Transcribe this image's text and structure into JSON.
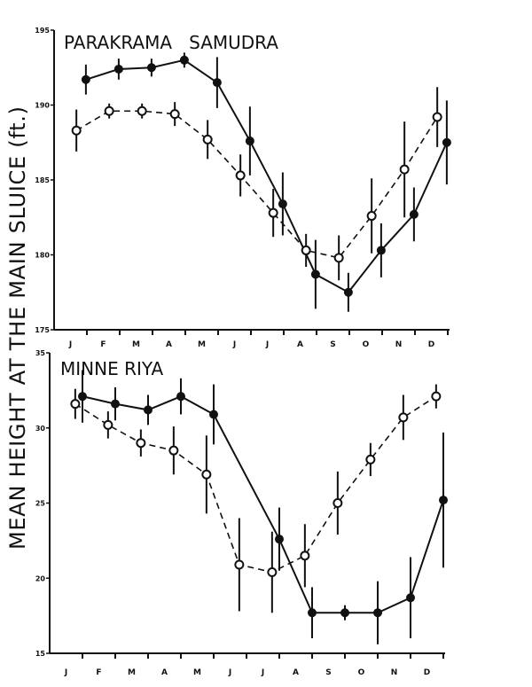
{
  "chart_data": [
    {
      "type": "line",
      "title": "PARAKRAMA   SAMUDRA",
      "ylabel": "MEAN HEIGHT AT THE MAIN SLUICE (ft.)",
      "categories": [
        "J",
        "F",
        "M",
        "A",
        "M",
        "J",
        "J",
        "A",
        "S",
        "O",
        "N",
        "D"
      ],
      "ylim": [
        175,
        195
      ],
      "yticks": [
        175,
        180,
        185,
        190,
        195
      ],
      "grid": false,
      "series": [
        {
          "marker": "filled-circle",
          "line": "solid",
          "values": [
            191.7,
            192.4,
            192.5,
            193.0,
            191.5,
            187.6,
            183.4,
            178.7,
            177.5,
            180.3,
            182.7,
            187.5
          ],
          "error": [
            1.0,
            0.7,
            0.6,
            0.5,
            1.7,
            2.3,
            2.1,
            2.3,
            1.3,
            1.8,
            1.8,
            2.8
          ]
        },
        {
          "marker": "open-circle",
          "line": "dashed",
          "values": [
            188.3,
            189.6,
            189.6,
            189.4,
            187.7,
            185.3,
            182.8,
            180.3,
            179.8,
            182.6,
            185.7,
            189.2
          ],
          "error": [
            1.4,
            0.5,
            0.5,
            0.8,
            1.3,
            1.4,
            1.6,
            1.1,
            1.5,
            2.5,
            3.2,
            2.0
          ]
        }
      ]
    },
    {
      "type": "line",
      "title": "MINNE RIYA",
      "categories": [
        "J",
        "F",
        "M",
        "A",
        "M",
        "J",
        "J",
        "A",
        "S",
        "O",
        "N",
        "D"
      ],
      "ylim": [
        15,
        35
      ],
      "yticks": [
        15,
        20,
        25,
        30,
        35
      ],
      "grid": false,
      "series": [
        {
          "marker": "filled-circle",
          "line": "solid",
          "values": [
            32.1,
            31.6,
            31.2,
            32.1,
            30.9,
            null,
            22.6,
            17.7,
            17.7,
            17.7,
            18.7,
            25.2
          ],
          "error": [
            1.75,
            1.1,
            1.0,
            1.2,
            2.0,
            null,
            2.1,
            1.7,
            0.5,
            2.1,
            2.7,
            4.5
          ]
        },
        {
          "marker": "open-circle",
          "line": "dashed",
          "values": [
            31.6,
            30.2,
            29.0,
            28.5,
            26.9,
            20.9,
            20.4,
            21.5,
            25.0,
            27.9,
            30.7,
            32.1
          ],
          "error": [
            1.0,
            0.9,
            0.9,
            1.6,
            2.6,
            3.1,
            2.7,
            2.1,
            2.1,
            1.1,
            1.5,
            0.8
          ]
        }
      ]
    }
  ],
  "colors": {
    "ink": "#111111",
    "background": "#ffffff"
  }
}
